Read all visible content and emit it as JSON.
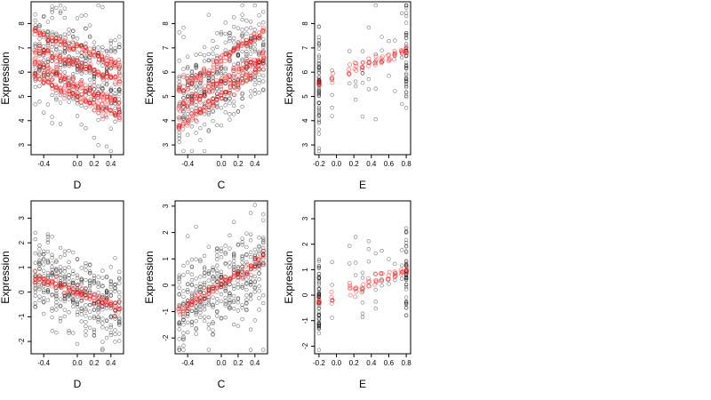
{
  "chart_data": [
    {
      "type": "scatter",
      "xlabel": "D",
      "ylabel": "Expression",
      "xlim": [
        -0.55,
        0.55
      ],
      "ylim": [
        2.6,
        8.9
      ],
      "xticks": [
        "-0.4",
        "0.0",
        "0.2",
        "0.4"
      ],
      "xtick_values": [
        -0.4,
        0.0,
        0.2,
        0.4
      ],
      "yticks": [
        "3",
        "4",
        "5",
        "6",
        "7",
        "8"
      ],
      "ytick_values": [
        3,
        4,
        5,
        6,
        7,
        8
      ],
      "x_levels": [
        -0.5,
        -0.45,
        -0.4,
        -0.35,
        -0.3,
        -0.25,
        -0.2,
        -0.15,
        -0.1,
        -0.05,
        0.0,
        0.05,
        0.1,
        0.15,
        0.2,
        0.25,
        0.3,
        0.35,
        0.4,
        0.45,
        0.5
      ],
      "observed": {
        "color": "#000000",
        "center": [
          6.2,
          -1.2
        ],
        "spread": 1.1,
        "n_per_level": 18
      },
      "fitted": {
        "color": "#ff0000",
        "bands": [
          [
            7.0,
            -1.4
          ],
          [
            6.3,
            -1.2
          ],
          [
            5.5,
            -1.6
          ],
          [
            5.0,
            -1.6
          ]
        ]
      }
    },
    {
      "type": "scatter",
      "xlabel": "C",
      "ylabel": "Expression",
      "xlim": [
        -0.55,
        0.55
      ],
      "ylim": [
        2.6,
        8.9
      ],
      "xticks": [
        "-0.4",
        "0.0",
        "0.2",
        "0.4"
      ],
      "xtick_values": [
        -0.4,
        0.0,
        0.2,
        0.4
      ],
      "yticks": [
        "3",
        "4",
        "5",
        "6",
        "7",
        "8"
      ],
      "ytick_values": [
        3,
        4,
        5,
        6,
        7,
        8
      ],
      "x_levels": [
        -0.5,
        -0.45,
        -0.4,
        -0.35,
        -0.3,
        -0.25,
        -0.2,
        -0.15,
        -0.1,
        -0.05,
        0.0,
        0.05,
        0.1,
        0.15,
        0.2,
        0.25,
        0.3,
        0.35,
        0.4,
        0.45,
        0.5
      ],
      "observed": {
        "color": "#000000",
        "center": [
          5.8,
          2.2
        ],
        "spread": 1.0,
        "n_per_level": 18
      },
      "fitted": {
        "color": "#ff0000",
        "bands": [
          [
            6.5,
            2.4
          ],
          [
            5.6,
            2.2
          ],
          [
            5.0,
            2.6
          ]
        ]
      }
    },
    {
      "type": "scatter",
      "xlabel": "E",
      "ylabel": "Expression",
      "xlim": [
        -0.25,
        0.85
      ],
      "ylim": [
        2.6,
        8.9
      ],
      "xticks": [
        "-0.2",
        "0.0",
        "0.2",
        "0.4",
        "0.6",
        "0.8"
      ],
      "xtick_values": [
        -0.2,
        0.0,
        0.2,
        0.4,
        0.6,
        0.8
      ],
      "yticks": [
        "3",
        "4",
        "5",
        "6",
        "7",
        "8"
      ],
      "ytick_values": [
        3,
        4,
        5,
        6,
        7,
        8
      ],
      "x_levels": [
        -0.2,
        -0.05,
        0.15,
        0.22,
        0.3,
        0.37,
        0.45,
        0.52,
        0.6,
        0.67,
        0.75,
        0.8
      ],
      "observed": {
        "color": "#000000",
        "center": [
          5.6,
          1.2
        ],
        "spread": 1.2,
        "n_per_level": [
          60,
          4,
          2,
          3,
          6,
          3,
          5,
          3,
          2,
          3,
          3,
          45
        ]
      },
      "fitted": {
        "color": "#ff0000",
        "bands": [
          [
            5.8,
            1.4
          ]
        ]
      }
    },
    {
      "type": "scatter",
      "xlabel": "D",
      "ylabel": "Expression",
      "xlim": [
        -0.55,
        0.55
      ],
      "ylim": [
        -2.5,
        3.7
      ],
      "xticks": [
        "-0.4",
        "0.0",
        "0.2",
        "0.4"
      ],
      "xtick_values": [
        -0.4,
        0.0,
        0.2,
        0.4
      ],
      "yticks": [
        "-2",
        "-1",
        "0",
        "1",
        "2",
        "3"
      ],
      "ytick_values": [
        -2,
        -1,
        0,
        1,
        2,
        3
      ],
      "x_levels": [
        -0.5,
        -0.45,
        -0.4,
        -0.35,
        -0.3,
        -0.25,
        -0.2,
        -0.15,
        -0.1,
        -0.05,
        0.0,
        0.05,
        0.1,
        0.15,
        0.2,
        0.25,
        0.3,
        0.35,
        0.4,
        0.45,
        0.5
      ],
      "observed": {
        "color": "#000000",
        "center": [
          0.0,
          -1.2
        ],
        "spread": 0.85,
        "n_per_level": 18
      },
      "fitted": {
        "color": "#ff0000",
        "bands": [
          [
            0.0,
            -1.2
          ]
        ]
      }
    },
    {
      "type": "scatter",
      "xlabel": "C",
      "ylabel": "Expression",
      "xlim": [
        -0.55,
        0.55
      ],
      "ylim": [
        -2.6,
        3.2
      ],
      "xticks": [
        "-0.4",
        "0.0",
        "0.2",
        "0.4"
      ],
      "xtick_values": [
        -0.4,
        0.0,
        0.2,
        0.4
      ],
      "yticks": [
        "-2",
        "-1",
        "0",
        "1",
        "2",
        "3"
      ],
      "ytick_values": [
        -2,
        -1,
        0,
        1,
        2,
        3
      ],
      "x_levels": [
        -0.5,
        -0.45,
        -0.4,
        -0.35,
        -0.3,
        -0.25,
        -0.2,
        -0.15,
        -0.1,
        -0.05,
        0.0,
        0.05,
        0.1,
        0.15,
        0.2,
        0.25,
        0.3,
        0.35,
        0.4,
        0.45,
        0.5
      ],
      "observed": {
        "color": "#000000",
        "center": [
          0.0,
          2.0
        ],
        "spread": 0.85,
        "n_per_level": 18
      },
      "fitted": {
        "color": "#ff0000",
        "bands": [
          [
            0.0,
            2.0
          ]
        ]
      }
    },
    {
      "type": "scatter",
      "xlabel": "E",
      "ylabel": "Expression",
      "xlim": [
        -0.25,
        0.85
      ],
      "ylim": [
        -2.3,
        3.7
      ],
      "xticks": [
        "-0.2",
        "0.0",
        "0.2",
        "0.4",
        "0.6",
        "0.8"
      ],
      "xtick_values": [
        -0.2,
        0.0,
        0.2,
        0.4,
        0.6,
        0.8
      ],
      "yticks": [
        "-2",
        "-1",
        "0",
        "1",
        "2",
        "3"
      ],
      "ytick_values": [
        -2,
        -1,
        0,
        1,
        2,
        3
      ],
      "x_levels": [
        -0.2,
        -0.05,
        0.15,
        0.22,
        0.3,
        0.37,
        0.45,
        0.52,
        0.6,
        0.67,
        0.75,
        0.8
      ],
      "observed": {
        "color": "#000000",
        "center": [
          0.0,
          1.2
        ],
        "spread": 0.9,
        "n_per_level": [
          60,
          4,
          2,
          3,
          6,
          3,
          5,
          3,
          2,
          3,
          3,
          45
        ]
      },
      "fitted": {
        "color": "#ff0000",
        "bands": [
          [
            0.0,
            1.2
          ]
        ]
      }
    }
  ]
}
